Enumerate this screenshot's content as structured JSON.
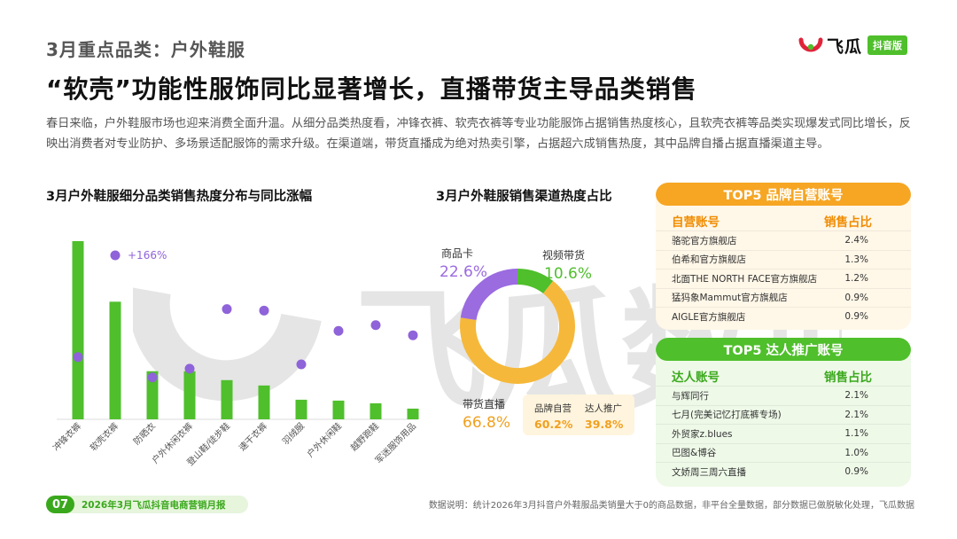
{
  "header": {
    "section_label": "3月重点品类：户外鞋服",
    "headline": "“软壳”功能性服饰同比显著增长，直播带货主导品类销售",
    "intro": "春日来临，户外鞋服市场也迎来消费全面升温。从细分品类热度看，冲锋衣裤、软壳衣裤等专业功能服饰占据销售热度核心，且软壳衣裤等品类实现爆发式同比增长，反映出消费者对专业防护、多场景适配服饰的需求升级。在渠道端，带货直播成为绝对热卖引擎，占据超六成销售热度，其中品牌自播占据直播渠道主导。"
  },
  "logo": {
    "name": "飞瓜",
    "badge": "抖音版"
  },
  "bar_chart": {
    "title": "3月户外鞋服细分品类销售热度分布与同比涨幅",
    "annotation": "+166%"
  },
  "donut_chart": {
    "title": "3月户外鞋服销售渠道热度占比",
    "labels": {
      "card_name": "商品卡",
      "card_value": "22.6%",
      "video_name": "视频带货",
      "video_value": "10.6%",
      "live_name": "带货直播",
      "live_value": "66.8%"
    },
    "sub_legend": {
      "self_name": "品牌自营",
      "self_value": "60.2%",
      "kol_name": "达人推广",
      "kol_value": "39.8%"
    }
  },
  "chart_data": [
    {
      "type": "bar",
      "title": "3月户外鞋服细分品类销售热度分布与同比涨幅",
      "categories": [
        "冲锋衣裤",
        "软壳衣裤",
        "防晒衣",
        "户外休闲衣裤",
        "登山鞋/徒步鞋",
        "速干衣裤",
        "羽绒服",
        "户外休闲鞋",
        "越野跑鞋",
        "军迷服饰用品"
      ],
      "series": [
        {
          "name": "销售热度",
          "kind": "bar",
          "values": [
            100,
            66,
            27,
            27,
            22,
            19,
            11,
            10.5,
            9,
            6
          ]
        },
        {
          "name": "同比涨幅",
          "kind": "dot",
          "values": [
            30,
            100,
            16,
            22,
            63,
            62,
            25,
            48,
            52,
            45
          ]
        }
      ],
      "annotations": [
        "+166%"
      ],
      "xlabel": "",
      "ylabel": ""
    },
    {
      "type": "pie",
      "title": "3月户外鞋服销售渠道热度占比",
      "categories": [
        "视频带货",
        "带货直播",
        "商品卡"
      ],
      "values": [
        10.6,
        66.8,
        22.6
      ],
      "colors": [
        "#4fbf2c",
        "#f6b83a",
        "#9b6be0"
      ],
      "sub_breakdown": {
        "parent": "带货直播",
        "categories": [
          "品牌自营",
          "达人推广"
        ],
        "values": [
          60.2,
          39.8
        ]
      }
    }
  ],
  "brand_table": {
    "title": "TOP5 品牌自营账号",
    "col_account": "自营账号",
    "col_share": "销售占比",
    "rows": [
      {
        "name": "骆驼官方旗舰店",
        "share": "2.4%"
      },
      {
        "name": "伯希和官方旗舰店",
        "share": "1.3%"
      },
      {
        "name": "北面THE NORTH FACE官方旗舰店",
        "share": "1.2%"
      },
      {
        "name": "猛犸象Mammut官方旗舰店",
        "share": "0.9%"
      },
      {
        "name": "AIGLE官方旗舰店",
        "share": "0.9%"
      }
    ]
  },
  "kol_table": {
    "title": "TOP5 达人推广账号",
    "col_account": "达人账号",
    "col_share": "销售占比",
    "rows": [
      {
        "name": "与辉同行",
        "share": "2.1%"
      },
      {
        "name": "七月(完美记忆打底裤专场)",
        "share": "2.1%"
      },
      {
        "name": "外贸家z.blues",
        "share": "1.1%"
      },
      {
        "name": "巴图&博谷",
        "share": "1.0%"
      },
      {
        "name": "文娇周三周六直播",
        "share": "0.9%"
      }
    ]
  },
  "footer": {
    "page": "07",
    "report": "2026年3月飞瓜抖音电商营销月报",
    "note": "数据说明：统计2026年3月抖音户外鞋服品类销量大于0的商品数据，非平台全量数据，部分数据已做脱敏化处理，飞瓜数据"
  },
  "watermark": {
    "text": "飞瓜数据"
  },
  "colors": {
    "green": "#4fbf2c",
    "orange": "#f6a623",
    "purple": "#9b6be0",
    "dot": "#8f63d9"
  }
}
